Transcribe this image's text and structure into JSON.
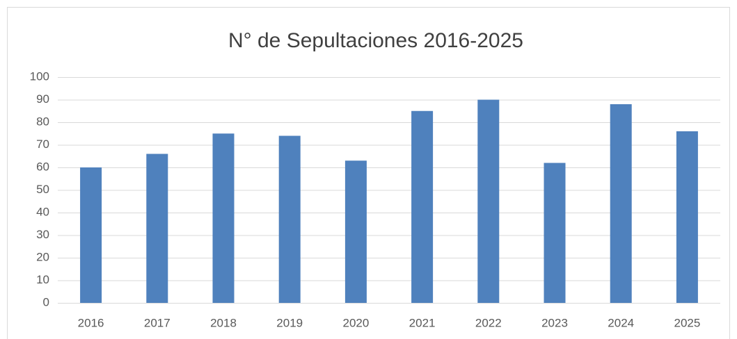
{
  "chart_data": {
    "type": "bar",
    "title": "N° de Sepultaciones 2016-2025",
    "categories": [
      "2016",
      "2017",
      "2018",
      "2019",
      "2020",
      "2021",
      "2022",
      "2023",
      "2024",
      "2025"
    ],
    "values": [
      60,
      66,
      75,
      74,
      63,
      85,
      90,
      62,
      88,
      76
    ],
    "color": "#4f81bd",
    "ylim": [
      0,
      100
    ],
    "yticks": [
      0,
      10,
      20,
      30,
      40,
      50,
      60,
      70,
      80,
      90,
      100
    ],
    "grid": true
  }
}
